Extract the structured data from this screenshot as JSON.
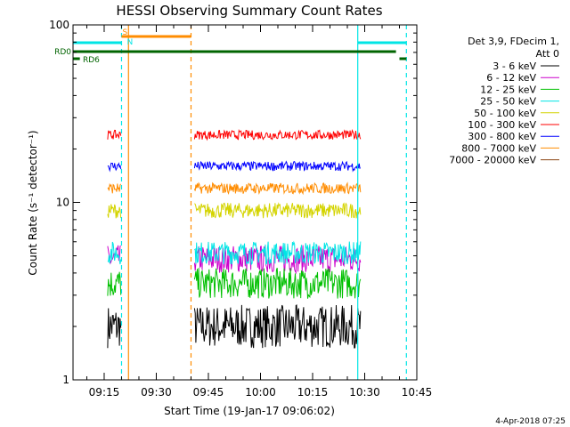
{
  "chart_data": {
    "type": "line",
    "title": "HESSI Observing Summary Count Rates",
    "xlabel": "Start Time (19-Jan-17 09:06:02)",
    "ylabel": "Count Rate (s⁻¹ detector⁻¹)",
    "yscale": "log",
    "ylim": [
      1,
      100
    ],
    "xlim": [
      "09:06",
      "10:45"
    ],
    "y_ticks": [
      "1",
      "10",
      "100"
    ],
    "x_ticks": [
      "09:15",
      "09:30",
      "09:45",
      "10:00",
      "10:15",
      "10:30",
      "10:45"
    ],
    "footer_date": "4-Apr-2018 07:25",
    "legend_header": [
      "Det 3,9, FDecim 1,",
      "Att 0"
    ],
    "legend_position": "right",
    "flags": {
      "rd0": {
        "label": "RD0",
        "color": "#006400",
        "intervals": [
          [
            "09:06",
            "10:39"
          ]
        ]
      },
      "rd6": {
        "label": "RD6",
        "color": "#006400",
        "intervals": [
          [
            "09:06",
            "09:08"
          ],
          [
            "10:40",
            "10:42"
          ]
        ]
      },
      "saa": {
        "label": "S",
        "color": "#ff8c00",
        "intervals": [
          [
            "09:20",
            "09:40"
          ]
        ]
      },
      "night": {
        "label": "N",
        "color": "#00e5e5",
        "intervals": [
          [
            "09:06",
            "09:20"
          ],
          [
            "10:28",
            "10:42"
          ]
        ]
      }
    },
    "vertical_markers": [
      {
        "time": "09:20",
        "color": "#00e5e5",
        "style": "dashed"
      },
      {
        "time": "09:22",
        "color": "#ff8c00",
        "style": "solid"
      },
      {
        "time": "09:40",
        "color": "#ff8c00",
        "style": "dashed"
      },
      {
        "time": "10:28",
        "color": "#00e5e5",
        "style": "solid"
      },
      {
        "time": "10:42",
        "color": "#00e5e5",
        "style": "dashed"
      }
    ],
    "series": [
      {
        "name": "3 - 6 keV",
        "color": "#000000",
        "level": 2.0,
        "noise": 0.28
      },
      {
        "name": "6 - 12 keV",
        "color": "#cc00cc",
        "level": 4.8,
        "noise": 0.18
      },
      {
        "name": "12 - 25 keV",
        "color": "#00c000",
        "level": 3.5,
        "noise": 0.2
      },
      {
        "name": "25 - 50 keV",
        "color": "#00e5e5",
        "level": 5.2,
        "noise": 0.15
      },
      {
        "name": "50 - 100 keV",
        "color": "#d4d400",
        "level": 9.0,
        "noise": 0.1
      },
      {
        "name": "100 - 300 keV",
        "color": "#ff0000",
        "level": 24.0,
        "noise": 0.06
      },
      {
        "name": "300 - 800 keV",
        "color": "#0000ff",
        "level": 16.0,
        "noise": 0.06
      },
      {
        "name": "800 - 7000 keV",
        "color": "#ff8c00",
        "level": 12.0,
        "noise": 0.07
      },
      {
        "name": "7000 - 20000 keV",
        "color": "#8b4513",
        "level": null,
        "noise": 0
      }
    ],
    "data_segments": [
      {
        "start": "09:16",
        "end": "09:20"
      },
      {
        "start": "09:41",
        "end": "10:29"
      }
    ]
  }
}
